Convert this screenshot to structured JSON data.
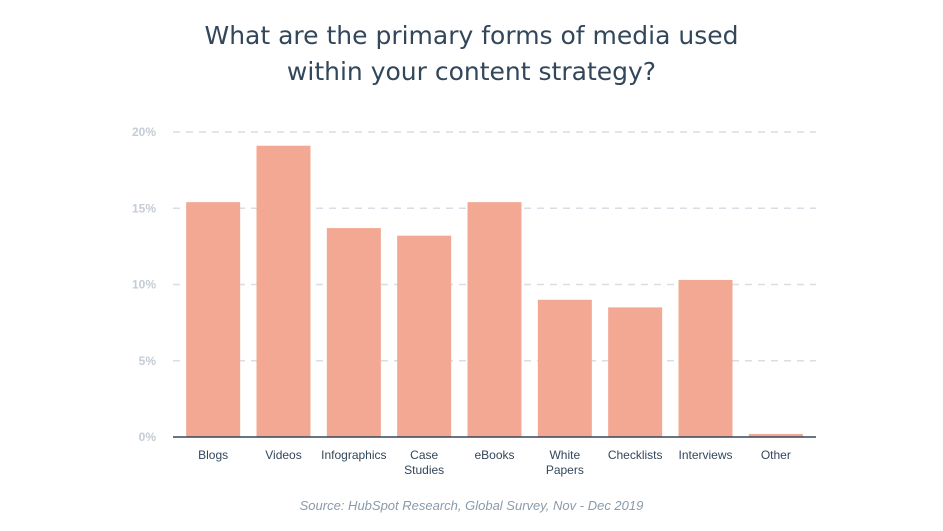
{
  "title_lines": [
    "What are the primary forms of media used",
    "within your content strategy?"
  ],
  "source": "Source: HubSpot Research, Global Survey, Nov - Dec 2019",
  "colors": {
    "bar": "#f2a893",
    "title": "#33475b",
    "tick": "#c4ccd5",
    "grid": "#d9dee4",
    "baseline": "#33475b",
    "category": "#33475b",
    "source": "#8a9bab"
  },
  "chart_data": {
    "type": "bar",
    "categories": [
      "Blogs",
      "Videos",
      "Infographics",
      "Case Studies",
      "eBooks",
      "White Papers",
      "Checklists",
      "Interviews",
      "Other"
    ],
    "category_lines": [
      [
        "Blogs"
      ],
      [
        "Videos"
      ],
      [
        "Infographics"
      ],
      [
        "Case",
        "Studies"
      ],
      [
        "eBooks"
      ],
      [
        "White",
        "Papers"
      ],
      [
        "Checklists"
      ],
      [
        "Interviews"
      ],
      [
        "Other"
      ]
    ],
    "values": [
      15.4,
      19.1,
      13.7,
      13.2,
      15.4,
      9.0,
      8.5,
      10.3,
      0.2
    ],
    "ylim": [
      0,
      20
    ],
    "yticks": [
      0,
      5,
      10,
      15,
      20
    ],
    "ytick_labels": [
      "0%",
      "5%",
      "10%",
      "15%",
      "20%"
    ],
    "grid": true,
    "legend": "none",
    "xlabel": "",
    "ylabel": ""
  }
}
